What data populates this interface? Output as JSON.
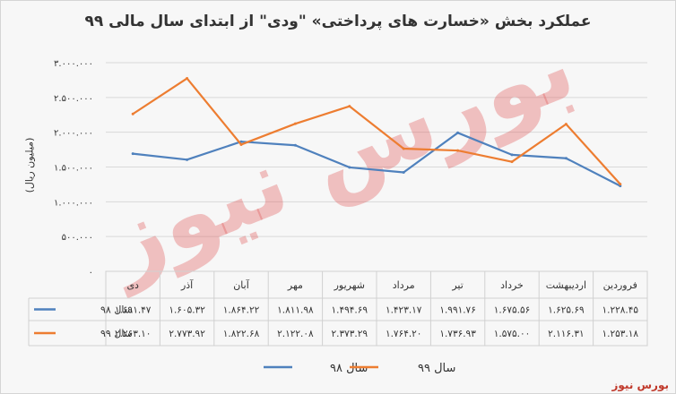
{
  "chart_data": {
    "type": "line",
    "title": "عملکرد بخش «خسارت های پرداختی» \"ودی\" از ابتدای سال مالی ۹۹",
    "ylabel": "(میلیون ریال)",
    "categories": [
      "فروردین",
      "اردیبهشت",
      "خرداد",
      "تیر",
      "مرداد",
      "شهریور",
      "مهر",
      "آبان",
      "آذر",
      "دی"
    ],
    "ytick_labels": [
      "۳.۰۰۰.۰۰۰",
      "۲.۵۰۰.۰۰۰",
      "۲.۰۰۰.۰۰۰",
      "۱.۵۰۰.۰۰۰",
      "۱.۰۰۰.۰۰۰",
      "۵۰۰.۰۰۰",
      "۰"
    ],
    "ylim": [
      0,
      3000000
    ],
    "series": [
      {
        "name": "سال ۹۸",
        "color": "#4f81bd",
        "values": [
          1228450,
          1625690,
          1675560,
          1991760,
          1423170,
          1494690,
          1811980,
          1864220,
          1605320,
          1691470
        ],
        "labels": [
          "۱.۲۲۸.۴۵",
          "۱.۶۲۵.۶۹",
          "۱.۶۷۵.۵۶",
          "۱.۹۹۱.۷۶",
          "۱.۴۲۳.۱۷",
          "۱.۴۹۴.۶۹",
          "۱.۸۱۱.۹۸",
          "۱.۸۶۴.۲۲",
          "۱.۶۰۵.۳۲",
          "۱.۶۹۱.۴۷"
        ]
      },
      {
        "name": "سال ۹۹",
        "color": "#ed7d31",
        "values": [
          1253180,
          2116310,
          1575000,
          1736930,
          1764200,
          2373290,
          2122080,
          1822680,
          2773920,
          2263100
        ],
        "labels": [
          "۱.۲۵۳.۱۸",
          "۲.۱۱۶.۳۱",
          "۱.۵۷۵.۰۰",
          "۱.۷۳۶.۹۳",
          "۱.۷۶۴.۲۰",
          "۲.۳۷۳.۲۹",
          "۲.۱۲۲.۰۸",
          "۱.۸۲۲.۶۸",
          "۲.۷۷۳.۹۲",
          "۲.۲۶۳.۱۰"
        ]
      }
    ],
    "grid": true,
    "legend": "bottom",
    "watermark": "بورس نیوز"
  },
  "brand": "بورس نیوز"
}
